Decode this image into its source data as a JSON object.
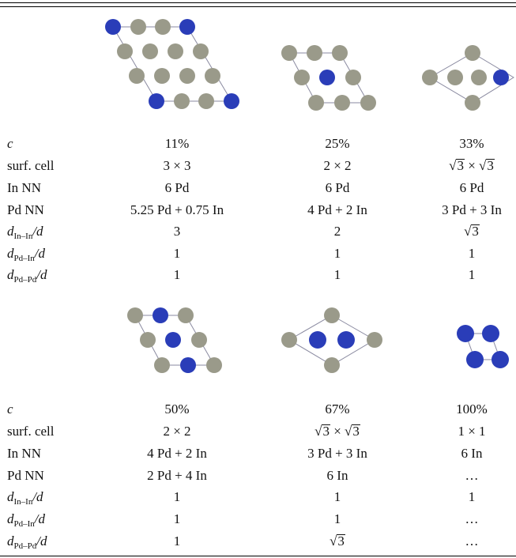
{
  "colors": {
    "pd_atom": "#9a9a8a",
    "in_atom": "#2a3db8",
    "cell_line": "#8a8aa0"
  },
  "row_labels": {
    "c": "c",
    "surf_cell": "surf. cell",
    "in_nn": "In NN",
    "pd_nn": "Pd NN",
    "d_letter": "d",
    "d_inin_sub": "In–In",
    "d_pdin_sub": "Pd–In",
    "d_pdpd_sub": "Pd–Pd",
    "d_tail": "/d"
  },
  "sqrt_symbol": "√",
  "three": "3",
  "times": " × ",
  "top": {
    "c": [
      "11%",
      "25%",
      "33%"
    ],
    "surf_cell": [
      "3 × 3",
      "2 × 2",
      ""
    ],
    "in_nn": [
      "6 Pd",
      "6 Pd",
      "6 Pd"
    ],
    "pd_nn": [
      "5.25 Pd + 0.75 In",
      "4 Pd + 2 In",
      "3 Pd + 3 In"
    ],
    "d_inin": [
      "3",
      "2",
      ""
    ],
    "d_pdin": [
      "1",
      "1",
      "1"
    ],
    "d_pdpd": [
      "1",
      "1",
      "1"
    ]
  },
  "bottom": {
    "c": [
      "50%",
      "67%",
      "100%"
    ],
    "surf_cell": [
      "2 × 2",
      "",
      "1 × 1"
    ],
    "in_nn": [
      "4 Pd + 2 In",
      "3 Pd + 3 In",
      "6 In"
    ],
    "pd_nn": [
      "2 Pd + 4 In",
      "6 In",
      "…"
    ],
    "d_inin": [
      "1",
      "1",
      "1"
    ],
    "d_pdin": [
      "1",
      "1",
      "…"
    ],
    "d_pdpd": [
      "1",
      "",
      "…"
    ]
  }
}
